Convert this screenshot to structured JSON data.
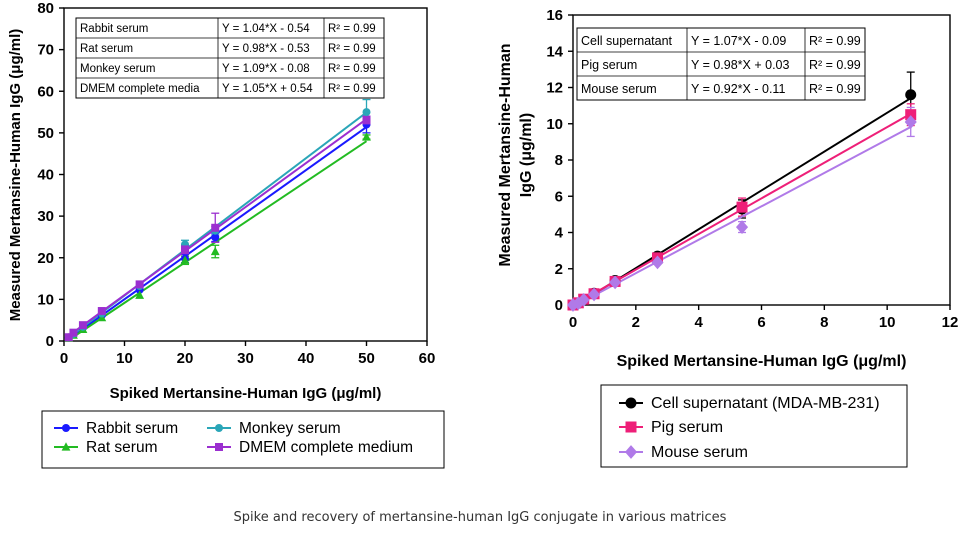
{
  "caption": "Spike and recovery of mertansine-human IgG conjugate in various matrices",
  "chart_data": [
    {
      "type": "scatter",
      "title": "",
      "xlabel": "Spiked Mertansine-Human IgG (μg/ml)",
      "ylabel": "Measured Mertansine-Human IgG (μg/ml)",
      "xlim": [
        0,
        60
      ],
      "ylim": [
        0,
        80
      ],
      "xticks": [
        0,
        10,
        20,
        30,
        40,
        50,
        60
      ],
      "yticks": [
        0,
        10,
        20,
        30,
        40,
        50,
        60,
        70,
        80
      ],
      "grid": false,
      "legend_position": "below",
      "series": [
        {
          "name": "Rabbit serum",
          "color": "#1a1aff",
          "marker": "circle",
          "x": [
            0.78,
            1.56,
            3.13,
            6.25,
            12.5,
            20,
            25,
            50
          ],
          "y": [
            0.8,
            1.6,
            3.2,
            6.2,
            12.3,
            19.8,
            24.9,
            52.0
          ],
          "err": [
            0,
            0,
            0,
            0,
            0,
            1.0,
            1.0,
            2.0
          ]
        },
        {
          "name": "Rat serum",
          "color": "#22bb22",
          "marker": "triangle",
          "x": [
            0.78,
            1.56,
            3.13,
            6.25,
            12.5,
            20,
            25,
            50
          ],
          "y": [
            0.7,
            1.4,
            2.8,
            5.6,
            11.0,
            19.4,
            21.5,
            49.0
          ],
          "err": [
            0,
            0,
            0,
            0,
            0,
            1.0,
            1.5,
            0.5
          ]
        },
        {
          "name": "Monkey serum",
          "color": "#2aa6b8",
          "marker": "circle",
          "x": [
            0.78,
            1.56,
            3.13,
            6.25,
            12.5,
            20,
            25,
            50
          ],
          "y": [
            0.9,
            1.7,
            3.4,
            6.6,
            13.2,
            23.2,
            26.5,
            55.0
          ],
          "err": [
            0,
            0,
            0,
            0,
            0,
            1.0,
            1.0,
            3.0
          ]
        },
        {
          "name": "DMEM complete medium",
          "color": "#9b2fd0",
          "marker": "square",
          "x": [
            0.78,
            1.56,
            3.13,
            6.25,
            12.5,
            20,
            25,
            50
          ],
          "y": [
            0.9,
            2.0,
            3.8,
            7.2,
            13.6,
            22.0,
            27.2,
            53.0
          ],
          "err": [
            0,
            0,
            0,
            0,
            0,
            1.0,
            3.5,
            1.0
          ]
        }
      ],
      "table": [
        [
          "Rabbit serum",
          "Y = 1.04*X - 0.54",
          "R² = 0.99"
        ],
        [
          "Rat serum",
          "Y = 0.98*X - 0.53",
          "R² = 0.99"
        ],
        [
          "Monkey serum",
          "Y = 1.09*X - 0.08",
          "R² = 0.99"
        ],
        [
          "DMEM complete media",
          "Y = 1.05*X + 0.54",
          "R² = 0.99"
        ]
      ]
    },
    {
      "type": "scatter",
      "title": "",
      "xlabel": "Spiked Mertansine-Human IgG (μg/ml)",
      "ylabel_lines": [
        "Measured Mertansine-Human",
        "IgG (μg/ml)"
      ],
      "xlim": [
        0,
        12
      ],
      "ylim": [
        0,
        16
      ],
      "xticks": [
        0,
        2,
        4,
        6,
        8,
        10,
        12
      ],
      "yticks": [
        0,
        2,
        4,
        6,
        8,
        10,
        12,
        14,
        16
      ],
      "grid": false,
      "legend_position": "below",
      "series": [
        {
          "name": "Cell supernatant (MDA-MB-231)",
          "color": "#000000",
          "marker": "circle",
          "x": [
            0,
            0.17,
            0.34,
            0.67,
            1.34,
            2.69,
            5.38,
            10.75
          ],
          "y": [
            0.0,
            0.1,
            0.3,
            0.65,
            1.35,
            2.7,
            5.3,
            11.6
          ],
          "err": [
            0,
            0,
            0,
            0,
            0,
            0.15,
            0.5,
            1.25
          ]
        },
        {
          "name": "Pig serum",
          "color": "#ee1f78",
          "marker": "square",
          "x": [
            0,
            0.17,
            0.34,
            0.67,
            1.34,
            2.69,
            5.38,
            10.75
          ],
          "y": [
            0.0,
            0.12,
            0.32,
            0.62,
            1.3,
            2.6,
            5.4,
            10.5
          ],
          "err": [
            0,
            0,
            0,
            0,
            0,
            0.1,
            0.5,
            0.6
          ]
        },
        {
          "name": "Mouse serum",
          "color": "#b07ae8",
          "marker": "diamond",
          "x": [
            0,
            0.17,
            0.34,
            0.67,
            1.34,
            2.69,
            5.38,
            10.75
          ],
          "y": [
            0.0,
            0.1,
            0.28,
            0.58,
            1.25,
            2.35,
            4.3,
            10.1
          ],
          "err": [
            0,
            0,
            0,
            0,
            0,
            0.1,
            0.3,
            0.8
          ]
        }
      ],
      "table": [
        [
          "Cell supernatant",
          "Y = 1.07*X - 0.09",
          "R² = 0.99"
        ],
        [
          "Pig serum",
          "Y = 0.98*X + 0.03",
          "R² = 0.99"
        ],
        [
          "Mouse serum",
          "Y = 0.92*X - 0.11",
          "R² = 0.99"
        ]
      ]
    }
  ]
}
